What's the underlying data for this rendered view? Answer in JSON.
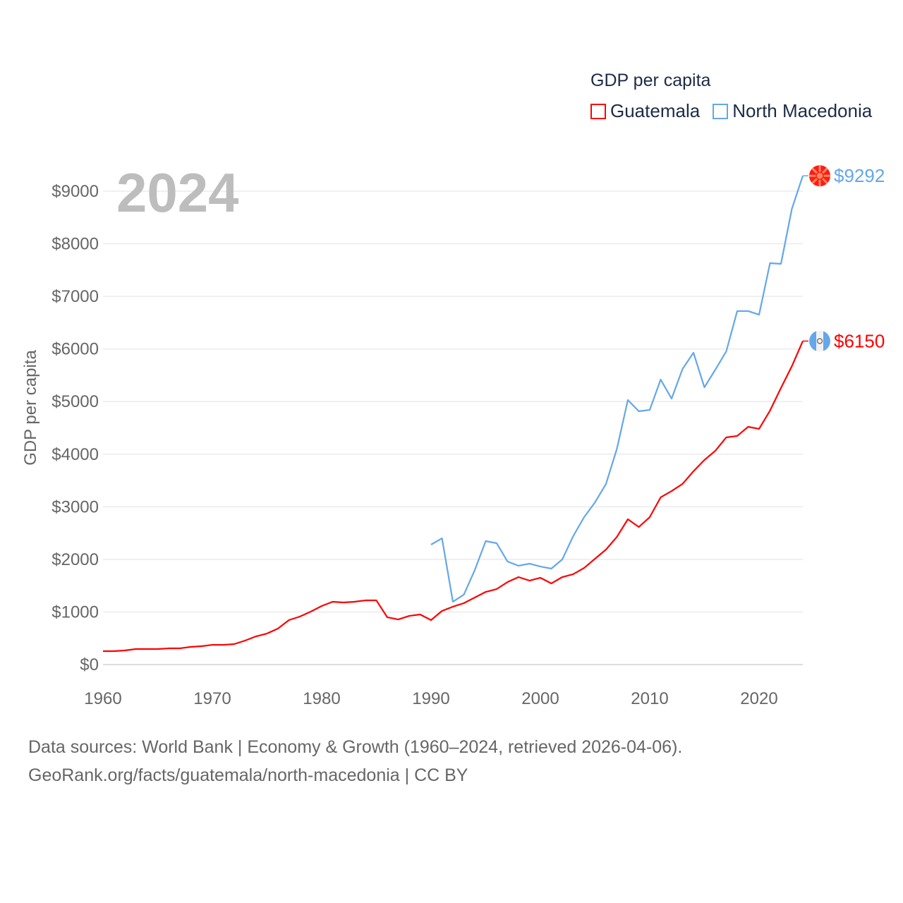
{
  "chart_data": {
    "type": "line",
    "title": "GDP per capita",
    "ylabel": "GDP per capita",
    "xlabel": "",
    "year_label": "2024",
    "xlim": [
      1960,
      2024
    ],
    "ylim": [
      0,
      9300
    ],
    "x_ticks": [
      "1960",
      "1970",
      "1980",
      "1990",
      "2000",
      "2010",
      "2020"
    ],
    "y_ticks": [
      {
        "v": 0,
        "label": "$0"
      },
      {
        "v": 1000,
        "label": "$1000"
      },
      {
        "v": 2000,
        "label": "$2000"
      },
      {
        "v": 3000,
        "label": "$3000"
      },
      {
        "v": 4000,
        "label": "$4000"
      },
      {
        "v": 5000,
        "label": "$5000"
      },
      {
        "v": 6000,
        "label": "$6000"
      },
      {
        "v": 7000,
        "label": "$7000"
      },
      {
        "v": 8000,
        "label": "$8000"
      },
      {
        "v": 9000,
        "label": "$9000"
      }
    ],
    "grid": true,
    "legend_position": "top-right",
    "series": [
      {
        "name": "Guatemala",
        "color": "#ff0000",
        "end_label": "$6150",
        "flag": "guatemala-flag",
        "start": 1960,
        "values": [
          255,
          255,
          268,
          295,
          295,
          295,
          308,
          308,
          335,
          349,
          375,
          375,
          389,
          456,
          536,
          590,
          684,
          845,
          912,
          1006,
          1113,
          1194,
          1180,
          1194,
          1220,
          1220,
          899,
          858,
          925,
          952,
          845,
          1019,
          1100,
          1167,
          1274,
          1381,
          1435,
          1569,
          1663,
          1596,
          1650,
          1542,
          1663,
          1717,
          1837,
          2012,
          2186,
          2428,
          2763,
          2615,
          2803,
          3179,
          3299,
          3434,
          3675,
          3889,
          4064,
          4319,
          4346,
          4520,
          4480,
          4828,
          5257,
          5673,
          6150
        ]
      },
      {
        "name": "North Macedonia",
        "color": "#64a7ea",
        "end_label": "$9292",
        "flag": "north-macedonia-flag",
        "start": 1990,
        "values": [
          2280,
          2400,
          1194,
          1328,
          1797,
          2347,
          2307,
          1958,
          1878,
          1918,
          1864,
          1824,
          1998,
          2441,
          2803,
          3085,
          3434,
          4104,
          5030,
          4815,
          4842,
          5418,
          5056,
          5620,
          5928,
          5271,
          5606,
          5955,
          6720,
          6720,
          6652,
          7631,
          7618,
          8664,
          9292
        ]
      }
    ]
  },
  "footer": {
    "line1": "Data sources: World Bank | Economy & Growth (1960–2024, retrieved 2026-04-06).",
    "line2": "GeoRank.org/facts/guatemala/north-macedonia | CC BY"
  }
}
